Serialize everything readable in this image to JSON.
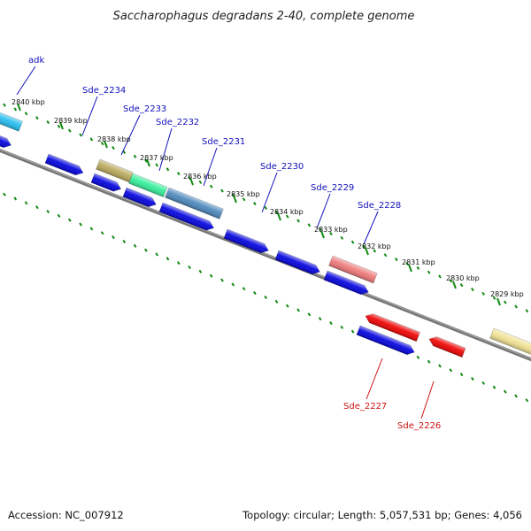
{
  "title": "Saccharophagus degradans 2-40, complete genome",
  "footer": {
    "accession": "Accession: NC_007912",
    "summary": "Topology: circular; Length: 5,057,531 bp; Genes: 4,056"
  },
  "colors": {
    "backbone": "#777777",
    "tick": "#118811",
    "label_forward": "#1111bb",
    "label_reverse": "#cc1111",
    "gene_blue": "#0000dd",
    "gene_red": "#ee0000"
  },
  "ticks": [
    {
      "label": "2840 kbp"
    },
    {
      "label": "2839 kbp"
    },
    {
      "label": "2838 kbp"
    },
    {
      "label": "2837 kbp"
    },
    {
      "label": "2836 kbp"
    },
    {
      "label": "2835 kbp"
    },
    {
      "label": "2834 kbp"
    },
    {
      "label": "2833 kbp"
    },
    {
      "label": "2832 kbp"
    },
    {
      "label": "2831 kbp"
    },
    {
      "label": "2830 kbp"
    },
    {
      "label": "2829 kbp"
    }
  ],
  "labeled_genes": [
    {
      "name": "adk",
      "strand": "forward"
    },
    {
      "name": "Sde_2234",
      "strand": "forward"
    },
    {
      "name": "Sde_2233",
      "strand": "forward"
    },
    {
      "name": "Sde_2232",
      "strand": "forward"
    },
    {
      "name": "Sde_2231",
      "strand": "forward"
    },
    {
      "name": "Sde_2230",
      "strand": "forward"
    },
    {
      "name": "Sde_2229",
      "strand": "forward"
    },
    {
      "name": "Sde_2228",
      "strand": "forward"
    },
    {
      "name": "Sde_2227",
      "strand": "reverse"
    },
    {
      "name": "Sde_2226",
      "strand": "reverse"
    }
  ]
}
